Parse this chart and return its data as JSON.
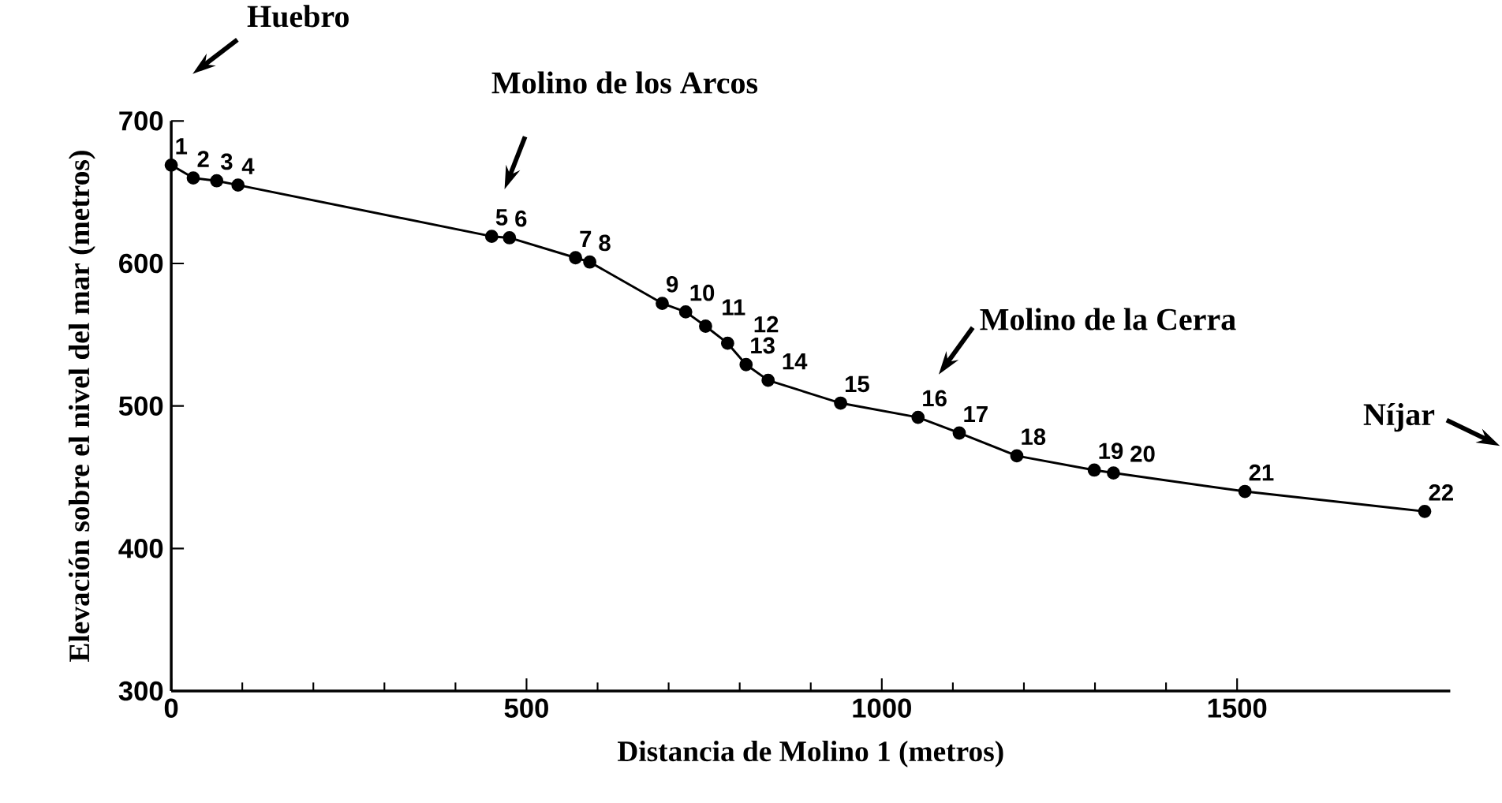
{
  "chart_data": {
    "type": "line",
    "xlabel": "Distancia de Molino 1 (metros)",
    "ylabel": "Elevación sobre el nivel del mar (metros)",
    "x": [
      0,
      31,
      64,
      94,
      451,
      476,
      569,
      589,
      691,
      724,
      752,
      783,
      809,
      840,
      942,
      1051,
      1109,
      1190,
      1299,
      1326,
      1511,
      1764
    ],
    "values": [
      669,
      660,
      658,
      655,
      619,
      618,
      604,
      601,
      572,
      566,
      556,
      544,
      529,
      518,
      502,
      492,
      481,
      465,
      455,
      453,
      440,
      426
    ],
    "color": "#000000",
    "marker": "circle",
    "line_style": "solid",
    "xlim": [
      0,
      1800
    ],
    "ylim": [
      300,
      700
    ],
    "xticks": [
      0,
      500,
      1000,
      1500
    ],
    "yticks": [
      300,
      400,
      500,
      600,
      700
    ],
    "grid": false,
    "annotations": [
      "Huebro",
      "Molino de los Arcos",
      "Molino de la Cerra",
      "Níjar",
      {
        "text": "1",
        "x": 0,
        "y": 669
      },
      {
        "text": "2",
        "x": 31,
        "y": 660
      },
      {
        "text": "3",
        "x": 64,
        "y": 658
      },
      {
        "text": "4",
        "x": 94,
        "y": 655
      },
      {
        "text": "5",
        "x": 451,
        "y": 619
      },
      {
        "text": "6",
        "x": 476,
        "y": 618
      },
      {
        "text": "7",
        "x": 569,
        "y": 604
      },
      {
        "text": "8",
        "x": 589,
        "y": 601
      },
      {
        "text": "9",
        "x": 691,
        "y": 572
      },
      {
        "text": "10",
        "x": 724,
        "y": 566
      },
      {
        "text": "11",
        "x": 752,
        "y": 556
      },
      {
        "text": "12",
        "x": 783,
        "y": 544
      },
      {
        "text": "13",
        "x": 809,
        "y": 529
      },
      {
        "text": "14",
        "x": 840,
        "y": 518
      },
      {
        "text": "15",
        "x": 942,
        "y": 502
      },
      {
        "text": "16",
        "x": 1051,
        "y": 492
      },
      {
        "text": "17",
        "x": 1109,
        "y": 481
      },
      {
        "text": "18",
        "x": 1190,
        "y": 465
      },
      {
        "text": "19",
        "x": 1299,
        "y": 455
      },
      {
        "text": "20",
        "x": 1326,
        "y": 453
      },
      {
        "text": "21",
        "x": 1511,
        "y": 440
      },
      {
        "text": "22",
        "x": 1764,
        "y": 426
      }
    ]
  }
}
